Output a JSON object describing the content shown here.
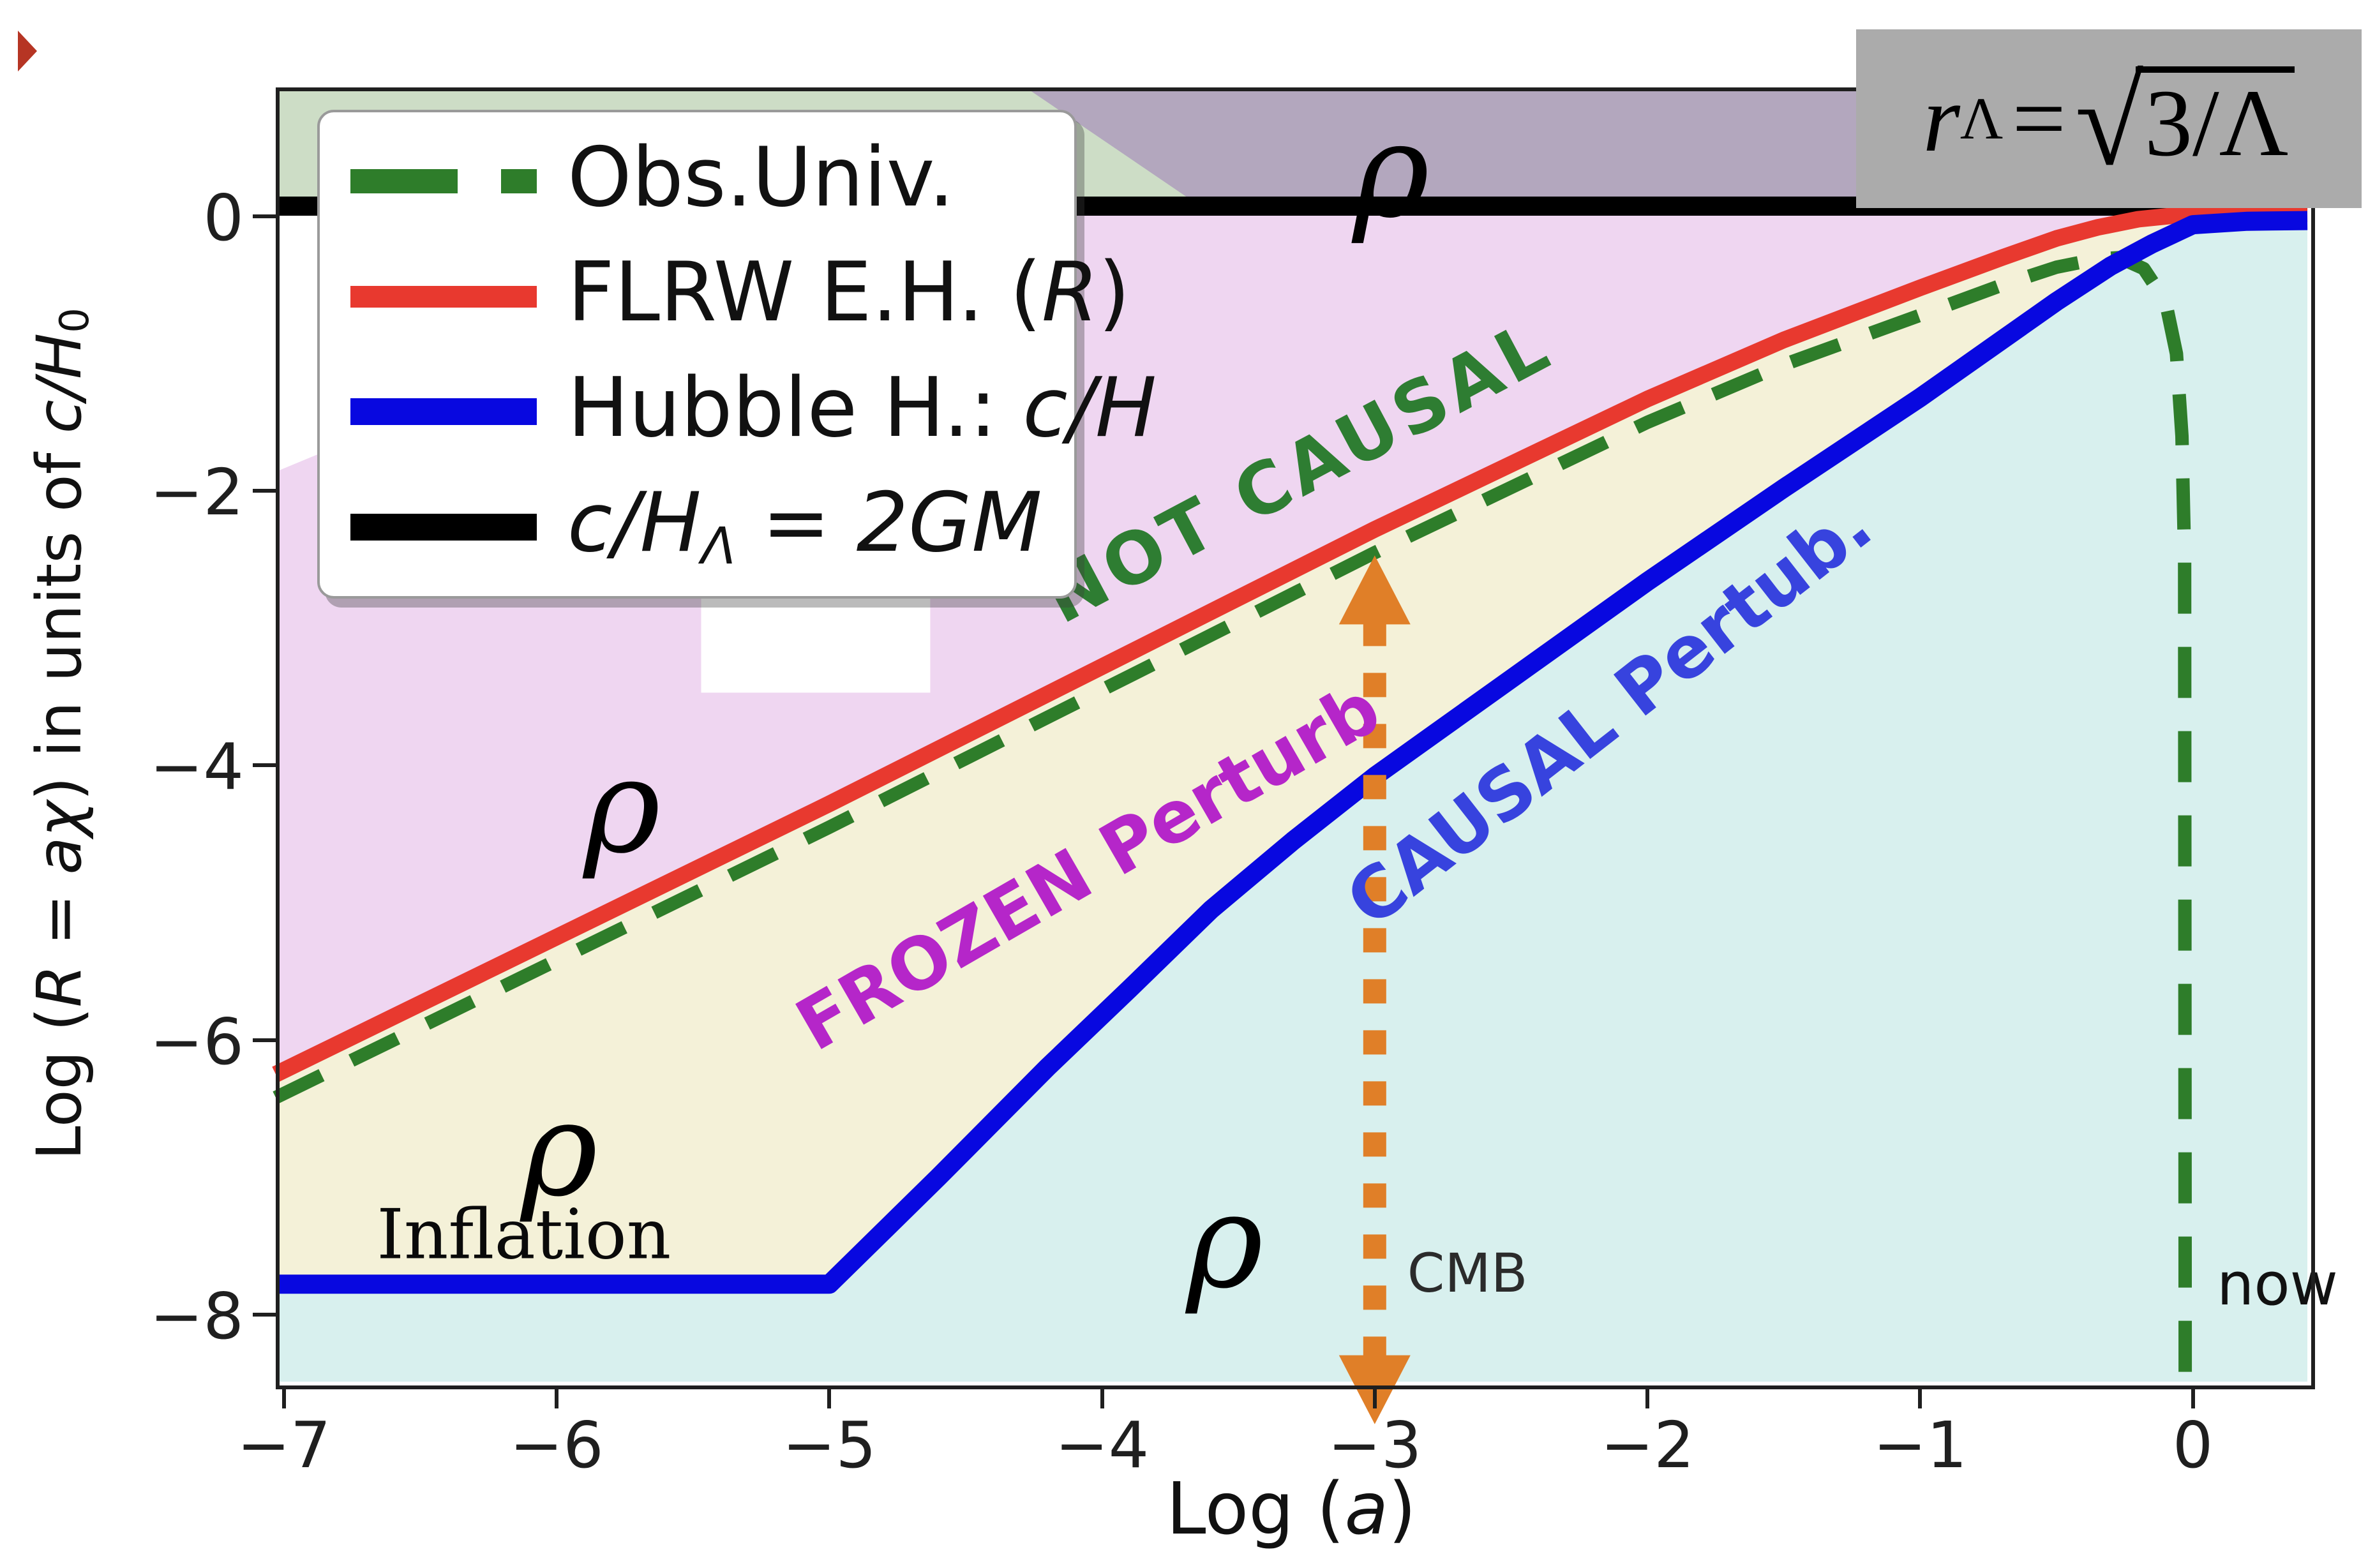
{
  "page": {
    "corner_marker_color": "#b63524",
    "background": "#ffffff"
  },
  "formula_box": {
    "r": "r",
    "sub": "Λ",
    "eq": "=",
    "sqrt": "√",
    "radicand": "3/Λ",
    "bg_color": "#ababab"
  },
  "legend": {
    "items": [
      {
        "pre": "Obs.Univ.",
        "it": "",
        "sub": "",
        "post": ""
      },
      {
        "pre": "FLRW E.H. (",
        "it": "R",
        "sub": "",
        "post": ")"
      },
      {
        "pre": "Hubble H.: ",
        "it": "c/H",
        "sub": "",
        "post": ""
      },
      {
        "pre": "",
        "it": "c/H",
        "sub": "Λ",
        "post": " = 2GM"
      }
    ]
  },
  "chart_data": {
    "type": "line",
    "title": "",
    "xlabel": "Log (a)",
    "ylabel": "Log (R = aχ) in units of c/H0",
    "xlabel_parts": [
      "Log (",
      "a",
      ")"
    ],
    "ylabel_parts": [
      "Log (",
      "R = aχ",
      ")  in units of ",
      "c/H",
      "0"
    ],
    "xlim": [
      -7.03,
      0.42
    ],
    "ylim": [
      -8.49,
      0.94
    ],
    "x_ticks": [
      -7,
      -6,
      -5,
      -4,
      -3,
      -2,
      -1,
      0
    ],
    "y_ticks": [
      0,
      -2,
      -4,
      -6,
      -8
    ],
    "grid": false,
    "legend_position": "upper left",
    "series": [
      {
        "name": "Obs.Univ.",
        "color": "#2e7d2a",
        "style": "dashed",
        "dash": [
          80,
          52
        ],
        "width": 21,
        "points": [
          [
            -7.03,
            -6.42
          ],
          [
            -5,
            -4.45
          ],
          [
            -3,
            -2.45
          ],
          [
            -2,
            -1.5
          ],
          [
            -1.5,
            -1.08
          ],
          [
            -1,
            -0.72
          ],
          [
            -0.7,
            -0.5
          ],
          [
            -0.5,
            -0.37
          ],
          [
            -0.35,
            -0.31
          ],
          [
            -0.27,
            -0.3
          ],
          [
            -0.18,
            -0.38
          ],
          [
            -0.1,
            -0.62
          ],
          [
            -0.06,
            -1.0
          ],
          [
            -0.04,
            -1.6
          ],
          [
            -0.03,
            -2.5
          ],
          [
            -0.028,
            -8.49
          ]
        ]
      },
      {
        "name": "FLRW E.H. (R)",
        "color": "#e8392f",
        "style": "solid",
        "width": 26,
        "points": [
          [
            -7.03,
            -6.25
          ],
          [
            -5,
            -4.28
          ],
          [
            -3,
            -2.28
          ],
          [
            -2,
            -1.33
          ],
          [
            -1.5,
            -0.9
          ],
          [
            -1,
            -0.52
          ],
          [
            -0.7,
            -0.3
          ],
          [
            -0.5,
            -0.16
          ],
          [
            -0.35,
            -0.08
          ],
          [
            -0.2,
            -0.02
          ],
          [
            -0.05,
            0.01
          ],
          [
            0.42,
            0.02
          ]
        ]
      },
      {
        "name": "Hubble H.: c/H",
        "color": "#0808e0",
        "style": "solid",
        "width": 30,
        "points": [
          [
            -7.03,
            -7.78
          ],
          [
            -5,
            -7.78
          ],
          [
            -4.6,
            -7.0
          ],
          [
            -4.2,
            -6.2
          ],
          [
            -3.9,
            -5.63
          ],
          [
            -3.6,
            -5.05
          ],
          [
            -3.3,
            -4.55
          ],
          [
            -3,
            -4.08
          ],
          [
            -2.5,
            -3.37
          ],
          [
            -2,
            -2.66
          ],
          [
            -1.5,
            -1.98
          ],
          [
            -1,
            -1.32
          ],
          [
            -0.7,
            -0.9
          ],
          [
            -0.5,
            -0.62
          ],
          [
            -0.3,
            -0.36
          ],
          [
            -0.15,
            -0.2
          ],
          [
            0,
            -0.06
          ],
          [
            0.2,
            -0.035
          ],
          [
            0.42,
            -0.03
          ]
        ]
      },
      {
        "name": "c/H_Λ = 2GM",
        "color": "#000000",
        "style": "solid",
        "width": 30,
        "points": [
          [
            -7.03,
            0.075
          ],
          [
            0.42,
            0.075
          ]
        ]
      }
    ],
    "regions": [
      {
        "name": "causal-region-fill",
        "color": "#d8f0ee",
        "type": "below-series",
        "series": 2
      },
      {
        "name": "frozen-region-fill",
        "color": "#f4f1d8",
        "type": "between-series",
        "upper": 1,
        "lower": 2
      },
      {
        "name": "not-causal-region-fill",
        "color": "#efd6f1",
        "type": "between-series",
        "upper": 3,
        "lower": 1
      },
      {
        "name": "top-green-band",
        "color": "#cdddc6",
        "type": "polygon",
        "points": [
          [
            -7.03,
            0.075
          ],
          [
            0.42,
            0.075
          ],
          [
            0.42,
            0.94
          ],
          [
            -7.03,
            0.94
          ]
        ]
      },
      {
        "name": "top-purple-band",
        "color": "#b3a7be",
        "type": "polygon",
        "points": [
          [
            -4.28,
            0.94
          ],
          [
            -3.64,
            0.075
          ],
          [
            0.42,
            0.075
          ],
          [
            0.42,
            0.94
          ]
        ]
      },
      {
        "name": "white-wedge",
        "color": "#ffffff",
        "type": "polygon",
        "points": [
          [
            -7.03,
            0.075
          ],
          [
            -6.86,
            0.075
          ],
          [
            -6.86,
            -1.72
          ],
          [
            -7.03,
            -1.86
          ]
        ]
      },
      {
        "name": "white-patch",
        "color": "#ffffff",
        "type": "polygon",
        "points": [
          [
            -5.47,
            -2.77
          ],
          [
            -4.63,
            -2.77
          ],
          [
            -4.63,
            -3.47
          ],
          [
            -5.47,
            -3.47
          ]
        ]
      }
    ],
    "annotations": {
      "arrow": {
        "x": -3,
        "y_top": -2.47,
        "y_bottom": -8.8,
        "color": "#e07f28",
        "style": "dotted-double-headed"
      },
      "labels": [
        {
          "id": "rho-top",
          "text": "ρ",
          "x": -2.94,
          "y": 0.33,
          "rot": 0,
          "size": 205,
          "color": "#000000"
        },
        {
          "id": "rho-pink",
          "text": "ρ",
          "x": -5.76,
          "y": -4.3,
          "rot": 0,
          "size": 205,
          "color": "#000000"
        },
        {
          "id": "rho-yellow",
          "text": "ρ",
          "x": -5.99,
          "y": -6.8,
          "rot": 0,
          "size": 205,
          "color": "#000000"
        },
        {
          "id": "rho-cyan",
          "text": "ρ",
          "x": -3.55,
          "y": -7.47,
          "rot": 0,
          "size": 205,
          "color": "#000000"
        },
        {
          "id": "not-causal",
          "text": "NOT CAUSAL",
          "x": -3.28,
          "y": -1.86,
          "rot": -28,
          "size": 112,
          "color": "#2e7d32"
        },
        {
          "id": "frozen",
          "text": "FROZEN Perturb",
          "x": -4.05,
          "y": -4.74,
          "rot": -30,
          "size": 112,
          "color": "#b526c9"
        },
        {
          "id": "causal",
          "text": "CAUSAL Pertub.",
          "x": -2.14,
          "y": -3.62,
          "rot": -38,
          "size": 112,
          "color": "#3743de"
        },
        {
          "id": "inflation",
          "text": "Inflation",
          "x": -6.12,
          "y": -7.42,
          "rot": 0,
          "size": 108,
          "color": "#0a0a0a"
        },
        {
          "id": "cmb",
          "text": "CMB",
          "x": -2.66,
          "y": -7.7,
          "rot": 0,
          "size": 84,
          "color": "#2b2b2b"
        },
        {
          "id": "now",
          "text": "now",
          "x": 0.31,
          "y": -7.78,
          "rot": 0,
          "size": 92,
          "color": "#111111"
        }
      ]
    }
  }
}
